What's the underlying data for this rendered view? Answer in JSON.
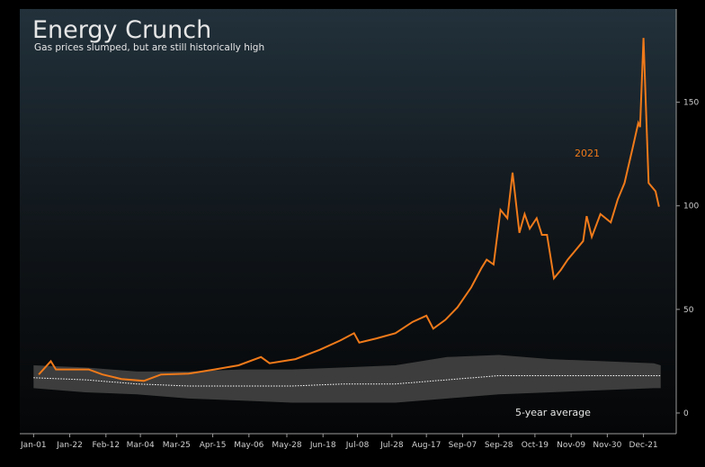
{
  "chart_data": {
    "type": "line",
    "title": "Energy Crunch",
    "subtitle": "Gas prices slumped, but are still historically high",
    "xlim": [
      -8,
      373
    ],
    "ylim": [
      -10,
      195
    ],
    "xticks": [
      {
        "value": 0,
        "label": "Jan-01"
      },
      {
        "value": 21,
        "label": "Jan-22"
      },
      {
        "value": 42,
        "label": "Feb-12"
      },
      {
        "value": 62,
        "label": "Mar-04"
      },
      {
        "value": 83,
        "label": "Mar-25"
      },
      {
        "value": 104,
        "label": "Apr-15"
      },
      {
        "value": 125,
        "label": "May-06"
      },
      {
        "value": 147,
        "label": "May-28"
      },
      {
        "value": 168,
        "label": "Jun-18"
      },
      {
        "value": 188,
        "label": "Jul-08"
      },
      {
        "value": 208,
        "label": "Jul-28"
      },
      {
        "value": 228,
        "label": "Aug-17"
      },
      {
        "value": 249,
        "label": "Sep-07"
      },
      {
        "value": 270,
        "label": "Sep-28"
      },
      {
        "value": 291,
        "label": "Oct-19"
      },
      {
        "value": 312,
        "label": "Nov-09"
      },
      {
        "value": 333,
        "label": "Nov-30"
      },
      {
        "value": 354,
        "label": "Dec-21"
      }
    ],
    "yticks": [
      0,
      50,
      100,
      150
    ],
    "series": [
      {
        "name": "2021",
        "color": "#f07a1a",
        "x": [
          3,
          10,
          13,
          22,
          32,
          40,
          51,
          64,
          74,
          90,
          105,
          119,
          132,
          137,
          152,
          166,
          178,
          186,
          189,
          199,
          210,
          220,
          228,
          232,
          239,
          246,
          254,
          260,
          263,
          267,
          271,
          275,
          278,
          282,
          285,
          288,
          292,
          295,
          298,
          302,
          306,
          310,
          314,
          319,
          321,
          324,
          329,
          335,
          339,
          343,
          348,
          351,
          352,
          354,
          357,
          361,
          363
        ],
        "values": [
          18.6,
          25,
          21,
          21,
          21,
          18.6,
          16.4,
          15.5,
          18.6,
          19,
          21,
          23,
          27,
          24,
          26,
          30.5,
          35,
          38.5,
          34,
          36,
          38.5,
          44,
          47,
          40.7,
          45,
          51,
          60.6,
          70,
          74,
          71.7,
          98,
          94,
          116,
          87,
          96,
          89,
          94,
          86,
          86,
          65,
          69,
          74,
          78,
          83,
          95,
          85,
          96,
          92,
          103,
          111,
          129,
          140,
          138,
          181,
          111,
          107,
          99.6
        ]
      },
      {
        "name": "5-year average",
        "color": "#ffffff",
        "band_color": "#3d3d3d",
        "x": [
          0,
          30,
          60,
          90,
          120,
          150,
          180,
          210,
          240,
          270,
          300,
          330,
          360,
          364
        ],
        "values": [
          17,
          16,
          14,
          13,
          13,
          13,
          14,
          14,
          16,
          18,
          18,
          18,
          18,
          18
        ],
        "low": [
          12,
          10,
          9,
          7,
          6,
          5,
          5,
          5,
          7,
          9,
          10,
          11,
          12,
          12
        ],
        "high": [
          23,
          22,
          20,
          20,
          21,
          21,
          22,
          23,
          27,
          28,
          26,
          25,
          24,
          23
        ]
      }
    ]
  }
}
